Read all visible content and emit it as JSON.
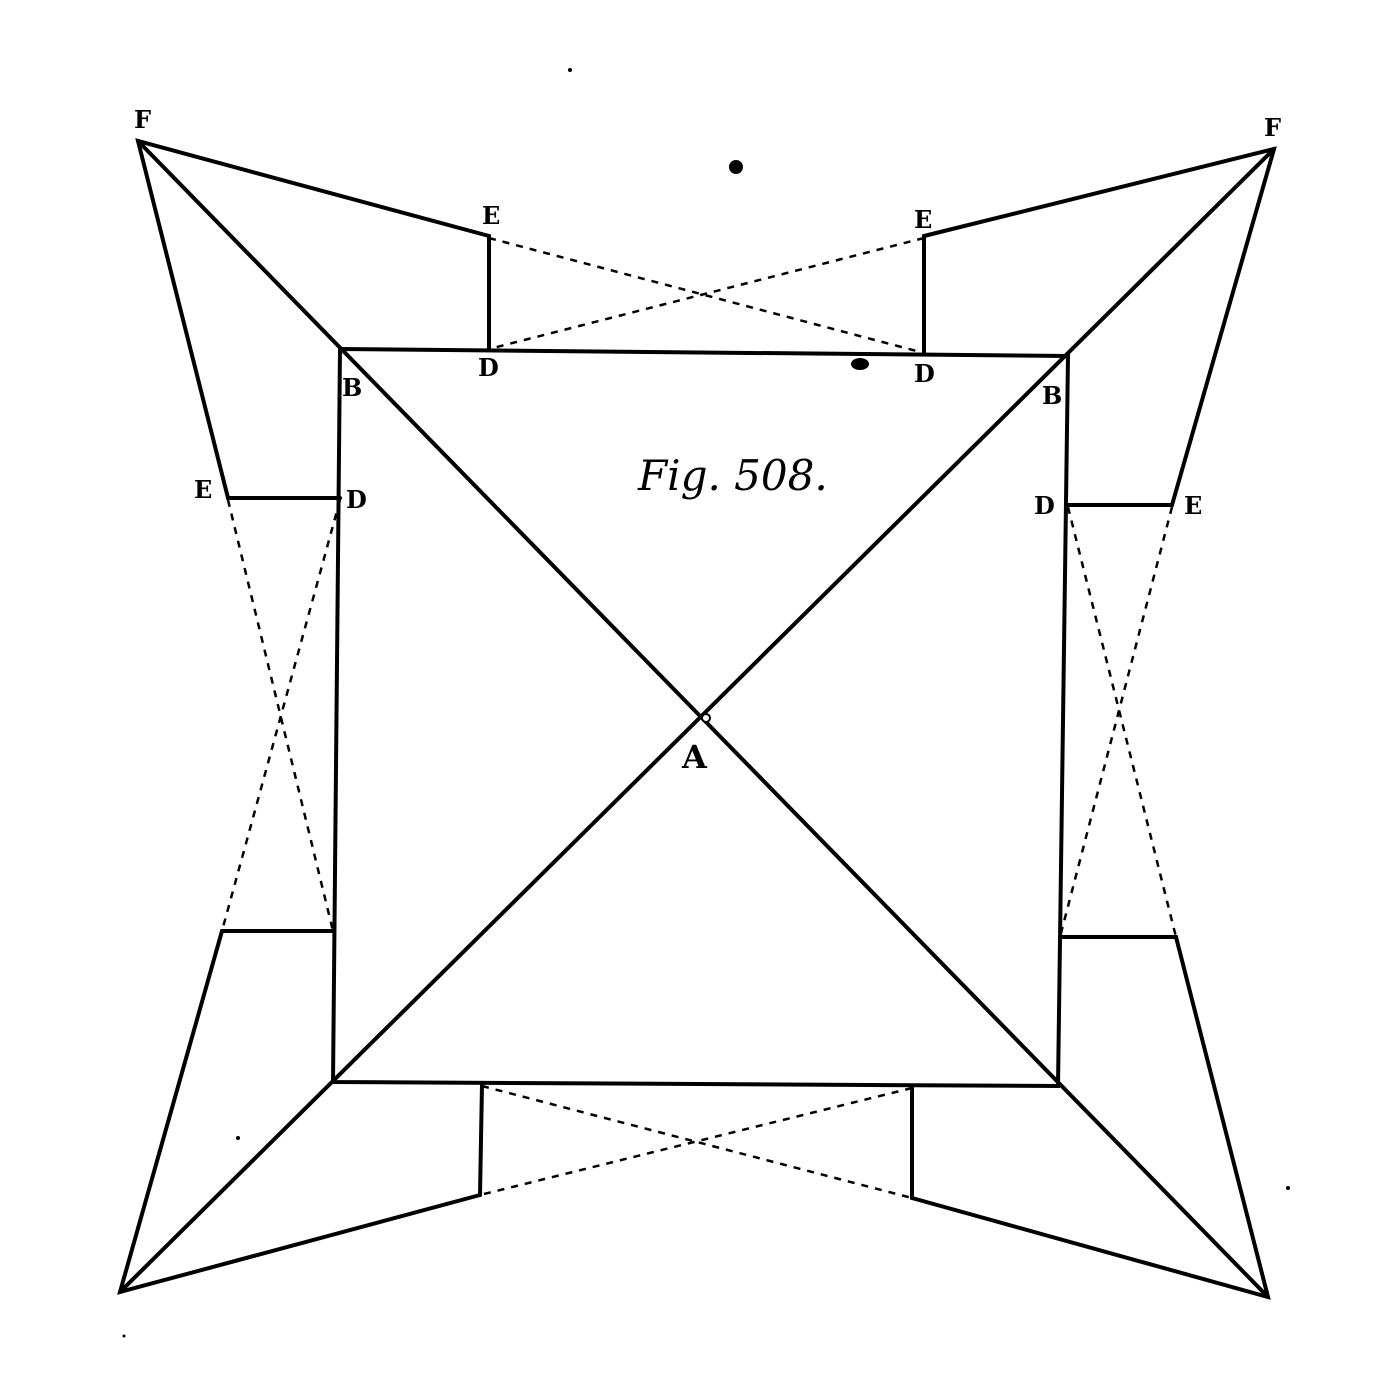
{
  "figure": {
    "caption": "Fig. 508.",
    "labels": {
      "center": "A",
      "corner_top_left": "B",
      "corner_top_right": "B",
      "face_top_left": "D",
      "face_top_right": "D",
      "face_left": "D",
      "face_right": "D",
      "flank_top_left": "E",
      "flank_top_right": "E",
      "flank_left": "E",
      "flank_right": "E",
      "bastion_top_left": "F",
      "bastion_top_right": "F"
    }
  }
}
